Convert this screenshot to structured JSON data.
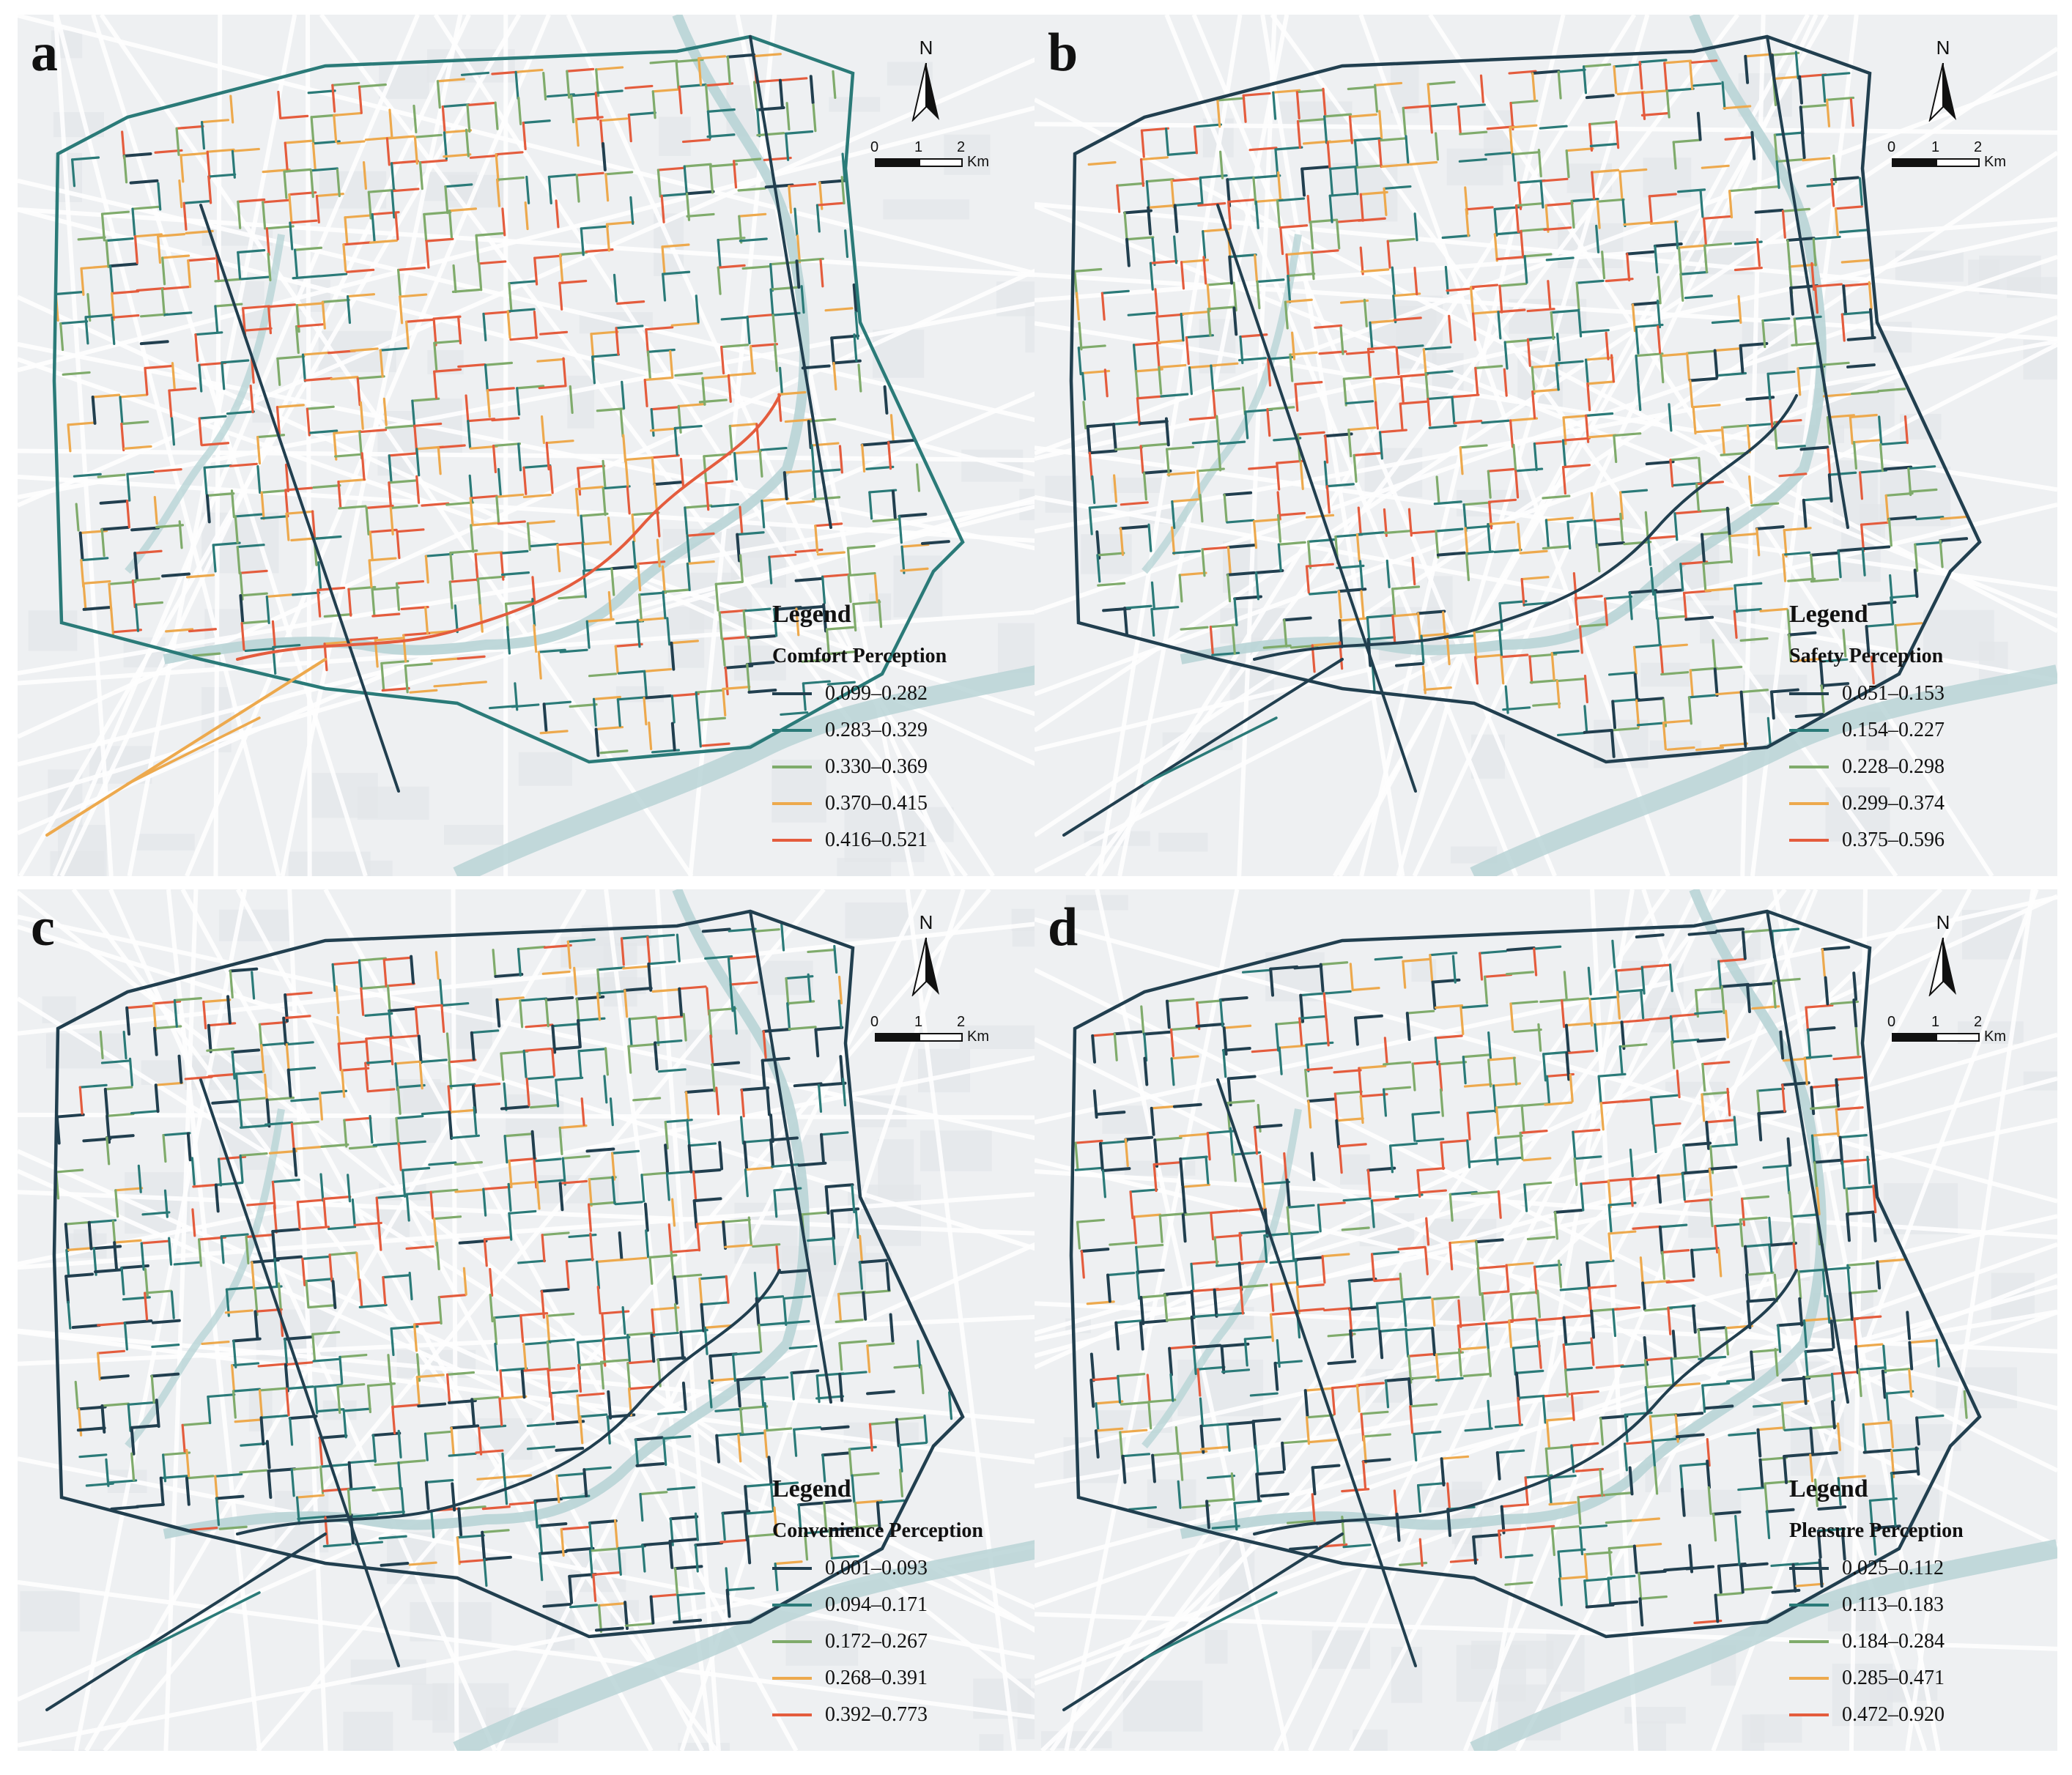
{
  "colors": {
    "class1": "#213f4f",
    "class2": "#2a7a78",
    "class3": "#7fab6b",
    "class4": "#eda94d",
    "class5": "#e45c3d",
    "river": "#b8d4d6",
    "background": "#eef0f2"
  },
  "north_label": "N",
  "scale": {
    "ticks": [
      "0",
      "1",
      "2"
    ],
    "unit": "Km"
  },
  "legend_title": "Legend",
  "panels": [
    {
      "letter": "a",
      "title": "Comfort Perception",
      "classes": [
        "0.099–0.282",
        "0.283–0.329",
        "0.330–0.369",
        "0.370–0.415",
        "0.416–0.521"
      ]
    },
    {
      "letter": "b",
      "title": "Safety Perception",
      "classes": [
        "0.051–0.153",
        "0.154–0.227",
        "0.228–0.298",
        "0.299–0.374",
        "0.375–0.596"
      ]
    },
    {
      "letter": "c",
      "title": "Convenience Perception",
      "classes": [
        "0.001–0.093",
        "0.094–0.171",
        "0.172–0.267",
        "0.268–0.391",
        "0.392–0.773"
      ]
    },
    {
      "letter": "d",
      "title": "Pleasure Perception",
      "classes": [
        "0.025–0.112",
        "0.113–0.183",
        "0.184–0.284",
        "0.285–0.471",
        "0.472–0.920"
      ]
    }
  ]
}
